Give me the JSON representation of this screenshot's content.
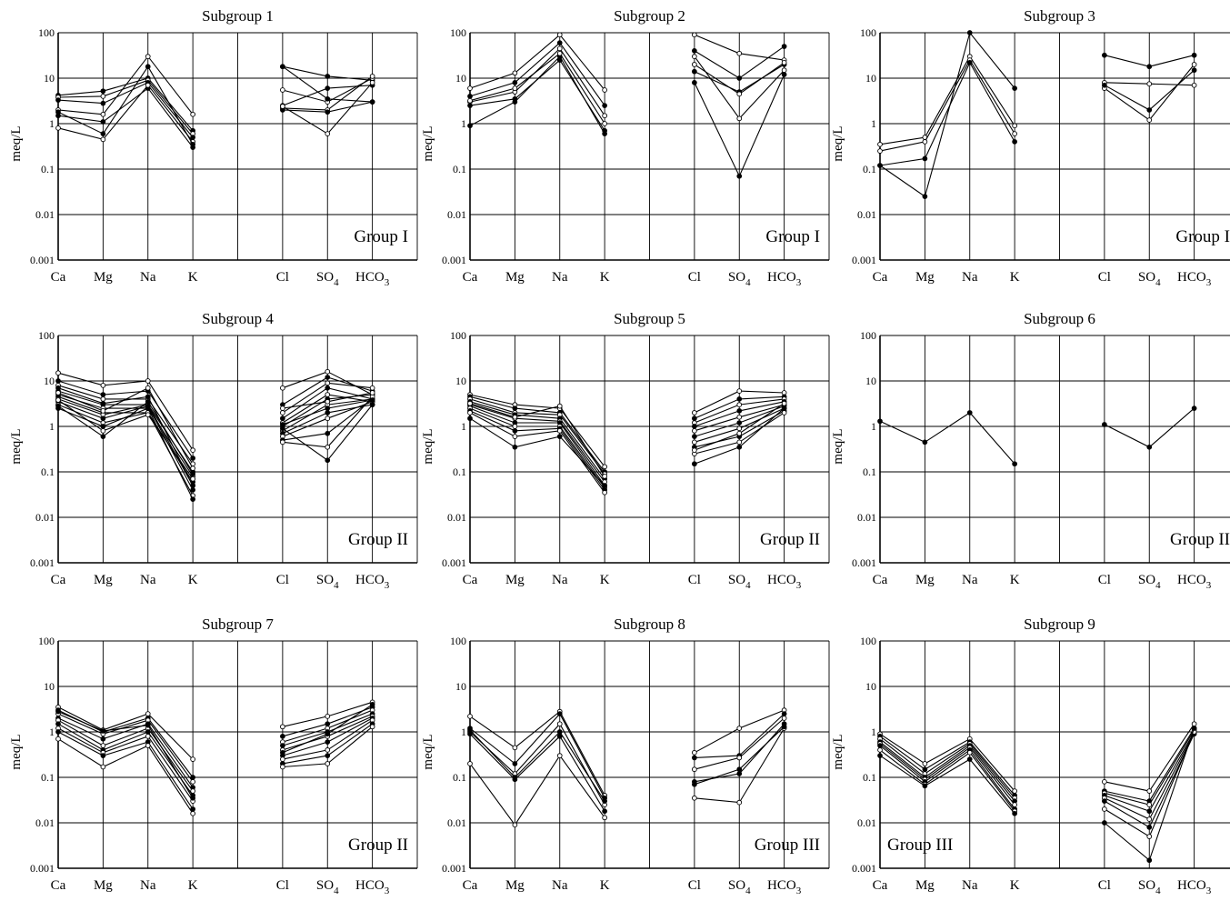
{
  "ions": [
    "Ca",
    "Mg",
    "Na",
    "K",
    "",
    "Cl",
    "SO4",
    "HCO3"
  ],
  "ion_display": [
    "Ca",
    "Mg",
    "Na",
    "K",
    "",
    "Cl",
    "SO",
    "HCO"
  ],
  "ion_subscripts": [
    "",
    "",
    "",
    "",
    "",
    "",
    "4",
    "3"
  ],
  "yaxis_label": "meq/L",
  "ytick_labels": [
    "0.001",
    "0.01",
    "0.1",
    "1",
    "10",
    "100"
  ],
  "chart_data": [
    {
      "type": "line",
      "title": "Subgroup 1",
      "group_label": "Group I",
      "group_pos": "bottom-right",
      "ylabel": "meq/L",
      "yscale": "log",
      "ylim": [
        0.001,
        100
      ],
      "categories": [
        "Ca",
        "Mg",
        "Na",
        "K",
        "",
        "Cl",
        "SO4",
        "HCO3"
      ],
      "series": [
        {
          "values": [
            4.2,
            5.2,
            10,
            0.7,
            null,
            18,
            11,
            9
          ],
          "marker": "filled"
        },
        {
          "values": [
            3.8,
            4.0,
            9,
            0.6,
            null,
            5.5,
            3.0,
            10
          ],
          "marker": "open"
        },
        {
          "values": [
            3.3,
            2.8,
            8,
            0.5,
            null,
            2.5,
            6.0,
            7
          ],
          "marker": "filled"
        },
        {
          "values": [
            2.0,
            1.6,
            30,
            1.6,
            null,
            2.2,
            2.0,
            11
          ],
          "marker": "open"
        },
        {
          "values": [
            1.5,
            1.1,
            6,
            0.3,
            null,
            2.0,
            1.8,
            3
          ],
          "marker": "filled"
        },
        {
          "values": [
            0.8,
            0.45,
            7,
            0.4,
            null,
            2.4,
            0.6,
            8
          ],
          "marker": "open"
        },
        {
          "values": [
            1.8,
            0.6,
            18,
            0.35,
            null,
            18,
            3.5,
            3
          ],
          "marker": "filled"
        }
      ]
    },
    {
      "type": "line",
      "title": "Subgroup 2",
      "group_label": "Group I",
      "group_pos": "bottom-right",
      "ylabel": "meq/L",
      "yscale": "log",
      "ylim": [
        0.001,
        100
      ],
      "categories": [
        "Ca",
        "Mg",
        "Na",
        "K",
        "",
        "Cl",
        "SO4",
        "HCO3"
      ],
      "series": [
        {
          "values": [
            6.0,
            13,
            90,
            5.5,
            null,
            90,
            35,
            25
          ],
          "marker": "open"
        },
        {
          "values": [
            4.0,
            8,
            60,
            2.5,
            null,
            40,
            10,
            50
          ],
          "marker": "filled"
        },
        {
          "values": [
            3.0,
            5,
            45,
            1.5,
            null,
            30,
            1.3,
            15
          ],
          "marker": "open"
        },
        {
          "values": [
            2.5,
            3.5,
            25,
            0.7,
            null,
            14,
            5,
            20
          ],
          "marker": "filled"
        },
        {
          "values": [
            0.9,
            3,
            30,
            0.6,
            null,
            8,
            0.07,
            12
          ],
          "marker": "filled"
        },
        {
          "values": [
            3.2,
            6,
            35,
            1.0,
            null,
            20,
            4.5,
            22
          ],
          "marker": "open"
        }
      ]
    },
    {
      "type": "line",
      "title": "Subgroup 3",
      "group_label": "Group I",
      "group_pos": "bottom-right",
      "ylabel": "meq/L",
      "yscale": "log",
      "ylim": [
        0.001,
        100
      ],
      "categories": [
        "Ca",
        "Mg",
        "Na",
        "K",
        "",
        "Cl",
        "SO4",
        "HCO3"
      ],
      "series": [
        {
          "values": [
            0.12,
            0.025,
            100,
            6.0,
            null,
            32,
            18,
            32
          ],
          "marker": "filled"
        },
        {
          "values": [
            0.35,
            0.5,
            30,
            0.9,
            null,
            8,
            7.5,
            7
          ],
          "marker": "open"
        },
        {
          "values": [
            0.25,
            0.4,
            25,
            0.6,
            null,
            6,
            1.2,
            20
          ],
          "marker": "open"
        },
        {
          "values": [
            0.12,
            0.17,
            22,
            0.4,
            null,
            7,
            2.0,
            15
          ],
          "marker": "filled"
        }
      ]
    },
    {
      "type": "line",
      "title": "Subgroup 4",
      "group_label": "Group II",
      "group_pos": "bottom-right",
      "ylabel": "meq/L",
      "yscale": "log",
      "ylim": [
        0.001,
        100
      ],
      "categories": [
        "Ca",
        "Mg",
        "Na",
        "K",
        "",
        "Cl",
        "SO4",
        "HCO3"
      ],
      "series": [
        {
          "values": [
            15,
            8,
            10,
            0.3,
            null,
            7,
            16,
            5
          ],
          "marker": "open"
        },
        {
          "values": [
            10,
            5,
            6,
            0.2,
            null,
            3,
            12,
            6
          ],
          "marker": "filled"
        },
        {
          "values": [
            8,
            4,
            4,
            0.15,
            null,
            2,
            9,
            7
          ],
          "marker": "open"
        },
        {
          "values": [
            6,
            3,
            3,
            0.1,
            null,
            1.5,
            7,
            4
          ],
          "marker": "filled"
        },
        {
          "values": [
            5,
            2.5,
            2.5,
            0.08,
            null,
            1.2,
            5,
            3.5
          ],
          "marker": "open"
        },
        {
          "values": [
            4.5,
            2,
            2,
            0.06,
            null,
            1,
            4,
            5
          ],
          "marker": "filled"
        },
        {
          "values": [
            4,
            1.8,
            3,
            0.05,
            null,
            0.8,
            3,
            4
          ],
          "marker": "open"
        },
        {
          "values": [
            3.5,
            1.5,
            2.8,
            0.04,
            null,
            0.7,
            2,
            3
          ],
          "marker": "filled"
        },
        {
          "values": [
            3,
            1.2,
            2,
            0.03,
            null,
            0.6,
            1.5,
            3.5
          ],
          "marker": "open"
        },
        {
          "values": [
            2.5,
            1,
            2.5,
            0.025,
            null,
            0.5,
            0.7,
            4
          ],
          "marker": "filled"
        },
        {
          "values": [
            3.8,
            0.8,
            1.8,
            0.07,
            null,
            0.45,
            0.35,
            4.5
          ],
          "marker": "open"
        },
        {
          "values": [
            2.8,
            0.6,
            3.5,
            0.09,
            null,
            0.9,
            0.18,
            3
          ],
          "marker": "filled"
        },
        {
          "values": [
            5.5,
            2.2,
            7,
            0.12,
            null,
            2.5,
            3.5,
            5.5
          ],
          "marker": "open"
        },
        {
          "values": [
            7,
            3.2,
            4.5,
            0.05,
            null,
            1.1,
            2.5,
            3.8
          ],
          "marker": "filled"
        }
      ]
    },
    {
      "type": "line",
      "title": "Subgroup 5",
      "group_label": "Group II",
      "group_pos": "bottom-right",
      "ylabel": "meq/L",
      "yscale": "log",
      "ylim": [
        0.001,
        100
      ],
      "categories": [
        "Ca",
        "Mg",
        "Na",
        "K",
        "",
        "Cl",
        "SO4",
        "HCO3"
      ],
      "series": [
        {
          "values": [
            5,
            3,
            2.5,
            0.13,
            null,
            2,
            6,
            5.5
          ],
          "marker": "open"
        },
        {
          "values": [
            4.5,
            2.5,
            2,
            0.1,
            null,
            1.5,
            4,
            4.5
          ],
          "marker": "filled"
        },
        {
          "values": [
            4,
            2,
            1.8,
            0.09,
            null,
            1.2,
            3,
            4
          ],
          "marker": "open"
        },
        {
          "values": [
            3.5,
            1.8,
            1.5,
            0.07,
            null,
            1,
            2.2,
            3.5
          ],
          "marker": "filled"
        },
        {
          "values": [
            3,
            1.5,
            1.3,
            0.06,
            null,
            0.8,
            1.6,
            3
          ],
          "marker": "open"
        },
        {
          "values": [
            2.8,
            1.2,
            1.2,
            0.05,
            null,
            0.6,
            1.2,
            2.8
          ],
          "marker": "filled"
        },
        {
          "values": [
            2.5,
            1,
            1,
            0.045,
            null,
            0.45,
            0.9,
            2.5
          ],
          "marker": "open"
        },
        {
          "values": [
            2.2,
            0.8,
            0.9,
            0.04,
            null,
            0.35,
            0.6,
            2.2
          ],
          "marker": "filled"
        },
        {
          "values": [
            2,
            0.6,
            0.8,
            0.035,
            null,
            0.25,
            0.45,
            2
          ],
          "marker": "open"
        },
        {
          "values": [
            1.5,
            0.35,
            0.6,
            0.05,
            null,
            0.15,
            0.35,
            2.5
          ],
          "marker": "filled"
        },
        {
          "values": [
            3.2,
            1.6,
            2.8,
            0.08,
            null,
            0.3,
            0.7,
            3.2
          ],
          "marker": "open"
        }
      ]
    },
    {
      "type": "line",
      "title": "Subgroup 6",
      "group_label": "Group II",
      "group_pos": "bottom-right",
      "ylabel": "meq/L",
      "yscale": "log",
      "ylim": [
        0.001,
        100
      ],
      "categories": [
        "Ca",
        "Mg",
        "Na",
        "K",
        "",
        "Cl",
        "SO4",
        "HCO3"
      ],
      "series": [
        {
          "values": [
            1.3,
            0.45,
            2.0,
            0.15,
            null,
            1.1,
            0.35,
            2.5
          ],
          "marker": "filled"
        }
      ]
    },
    {
      "type": "line",
      "title": "Subgroup 7",
      "group_label": "Group II",
      "group_pos": "bottom-right",
      "ylabel": "meq/L",
      "yscale": "log",
      "ylim": [
        0.001,
        100
      ],
      "categories": [
        "Ca",
        "Mg",
        "Na",
        "K",
        "",
        "Cl",
        "SO4",
        "HCO3"
      ],
      "series": [
        {
          "values": [
            3.5,
            1.1,
            2.5,
            0.25,
            null,
            1.3,
            2.2,
            4.5
          ],
          "marker": "open"
        },
        {
          "values": [
            3,
            1,
            2,
            0.1,
            null,
            0.8,
            1.5,
            3.5
          ],
          "marker": "filled"
        },
        {
          "values": [
            2.5,
            0.9,
            1.8,
            0.08,
            null,
            0.6,
            1.2,
            3
          ],
          "marker": "open"
        },
        {
          "values": [
            2,
            0.7,
            1.5,
            0.06,
            null,
            0.5,
            1,
            2.5
          ],
          "marker": "filled"
        },
        {
          "values": [
            1.8,
            0.5,
            1.2,
            0.05,
            null,
            0.4,
            0.8,
            2.2
          ],
          "marker": "open"
        },
        {
          "values": [
            1.5,
            0.4,
            1,
            0.04,
            null,
            0.3,
            0.6,
            2
          ],
          "marker": "filled"
        },
        {
          "values": [
            1.2,
            0.35,
            0.8,
            0.03,
            null,
            0.25,
            0.4,
            1.8
          ],
          "marker": "open"
        },
        {
          "values": [
            1,
            0.3,
            0.6,
            0.02,
            null,
            0.2,
            0.3,
            1.5
          ],
          "marker": "filled"
        },
        {
          "values": [
            0.7,
            0.17,
            0.5,
            0.016,
            null,
            0.17,
            0.2,
            1.3
          ],
          "marker": "open"
        },
        {
          "values": [
            2.8,
            1.05,
            1.4,
            0.035,
            null,
            0.35,
            0.9,
            4
          ],
          "marker": "filled"
        }
      ]
    },
    {
      "type": "line",
      "title": "Subgroup 8",
      "group_label": "Group III",
      "group_pos": "bottom-right",
      "ylabel": "meq/L",
      "yscale": "log",
      "ylim": [
        0.001,
        100
      ],
      "categories": [
        "Ca",
        "Mg",
        "Na",
        "K",
        "",
        "Cl",
        "SO4",
        "HCO3"
      ],
      "series": [
        {
          "values": [
            2.2,
            0.45,
            2.8,
            0.04,
            null,
            0.35,
            1.2,
            3
          ],
          "marker": "open"
        },
        {
          "values": [
            1.2,
            0.2,
            2.5,
            0.035,
            null,
            0.27,
            0.3,
            2.5
          ],
          "marker": "filled"
        },
        {
          "values": [
            1,
            0.12,
            1.5,
            0.025,
            null,
            0.15,
            0.27,
            2
          ],
          "marker": "open"
        },
        {
          "values": [
            0.9,
            0.09,
            0.8,
            0.018,
            null,
            0.08,
            0.12,
            1.5
          ],
          "marker": "filled"
        },
        {
          "values": [
            0.2,
            0.009,
            0.3,
            0.013,
            null,
            0.035,
            0.028,
            1.2
          ],
          "marker": "open"
        },
        {
          "values": [
            1.1,
            0.1,
            1,
            0.03,
            null,
            0.07,
            0.15,
            1.3
          ],
          "marker": "filled"
        }
      ]
    },
    {
      "type": "line",
      "title": "Subgroup 9",
      "group_label": "Group III",
      "group_pos": "bottom-left",
      "ylabel": "meq/L",
      "yscale": "log",
      "ylim": [
        0.001,
        100
      ],
      "categories": [
        "Ca",
        "Mg",
        "Na",
        "K",
        "",
        "Cl",
        "SO4",
        "HCO3"
      ],
      "series": [
        {
          "values": [
            0.9,
            0.2,
            0.7,
            0.05,
            null,
            0.08,
            0.05,
            1.5
          ],
          "marker": "open"
        },
        {
          "values": [
            0.8,
            0.15,
            0.6,
            0.04,
            null,
            0.05,
            0.03,
            1.2
          ],
          "marker": "filled"
        },
        {
          "values": [
            0.7,
            0.12,
            0.55,
            0.035,
            null,
            0.045,
            0.025,
            1.1
          ],
          "marker": "open"
        },
        {
          "values": [
            0.6,
            0.1,
            0.5,
            0.03,
            null,
            0.04,
            0.018,
            1
          ],
          "marker": "filled"
        },
        {
          "values": [
            0.55,
            0.09,
            0.45,
            0.025,
            null,
            0.035,
            0.012,
            0.95
          ],
          "marker": "open"
        },
        {
          "values": [
            0.5,
            0.08,
            0.4,
            0.02,
            null,
            0.03,
            0.008,
            0.9
          ],
          "marker": "filled"
        },
        {
          "values": [
            0.4,
            0.07,
            0.35,
            0.018,
            null,
            0.02,
            0.005,
            1
          ],
          "marker": "open"
        },
        {
          "values": [
            0.3,
            0.065,
            0.25,
            0.016,
            null,
            0.01,
            0.0015,
            1.2
          ],
          "marker": "filled"
        }
      ]
    }
  ]
}
